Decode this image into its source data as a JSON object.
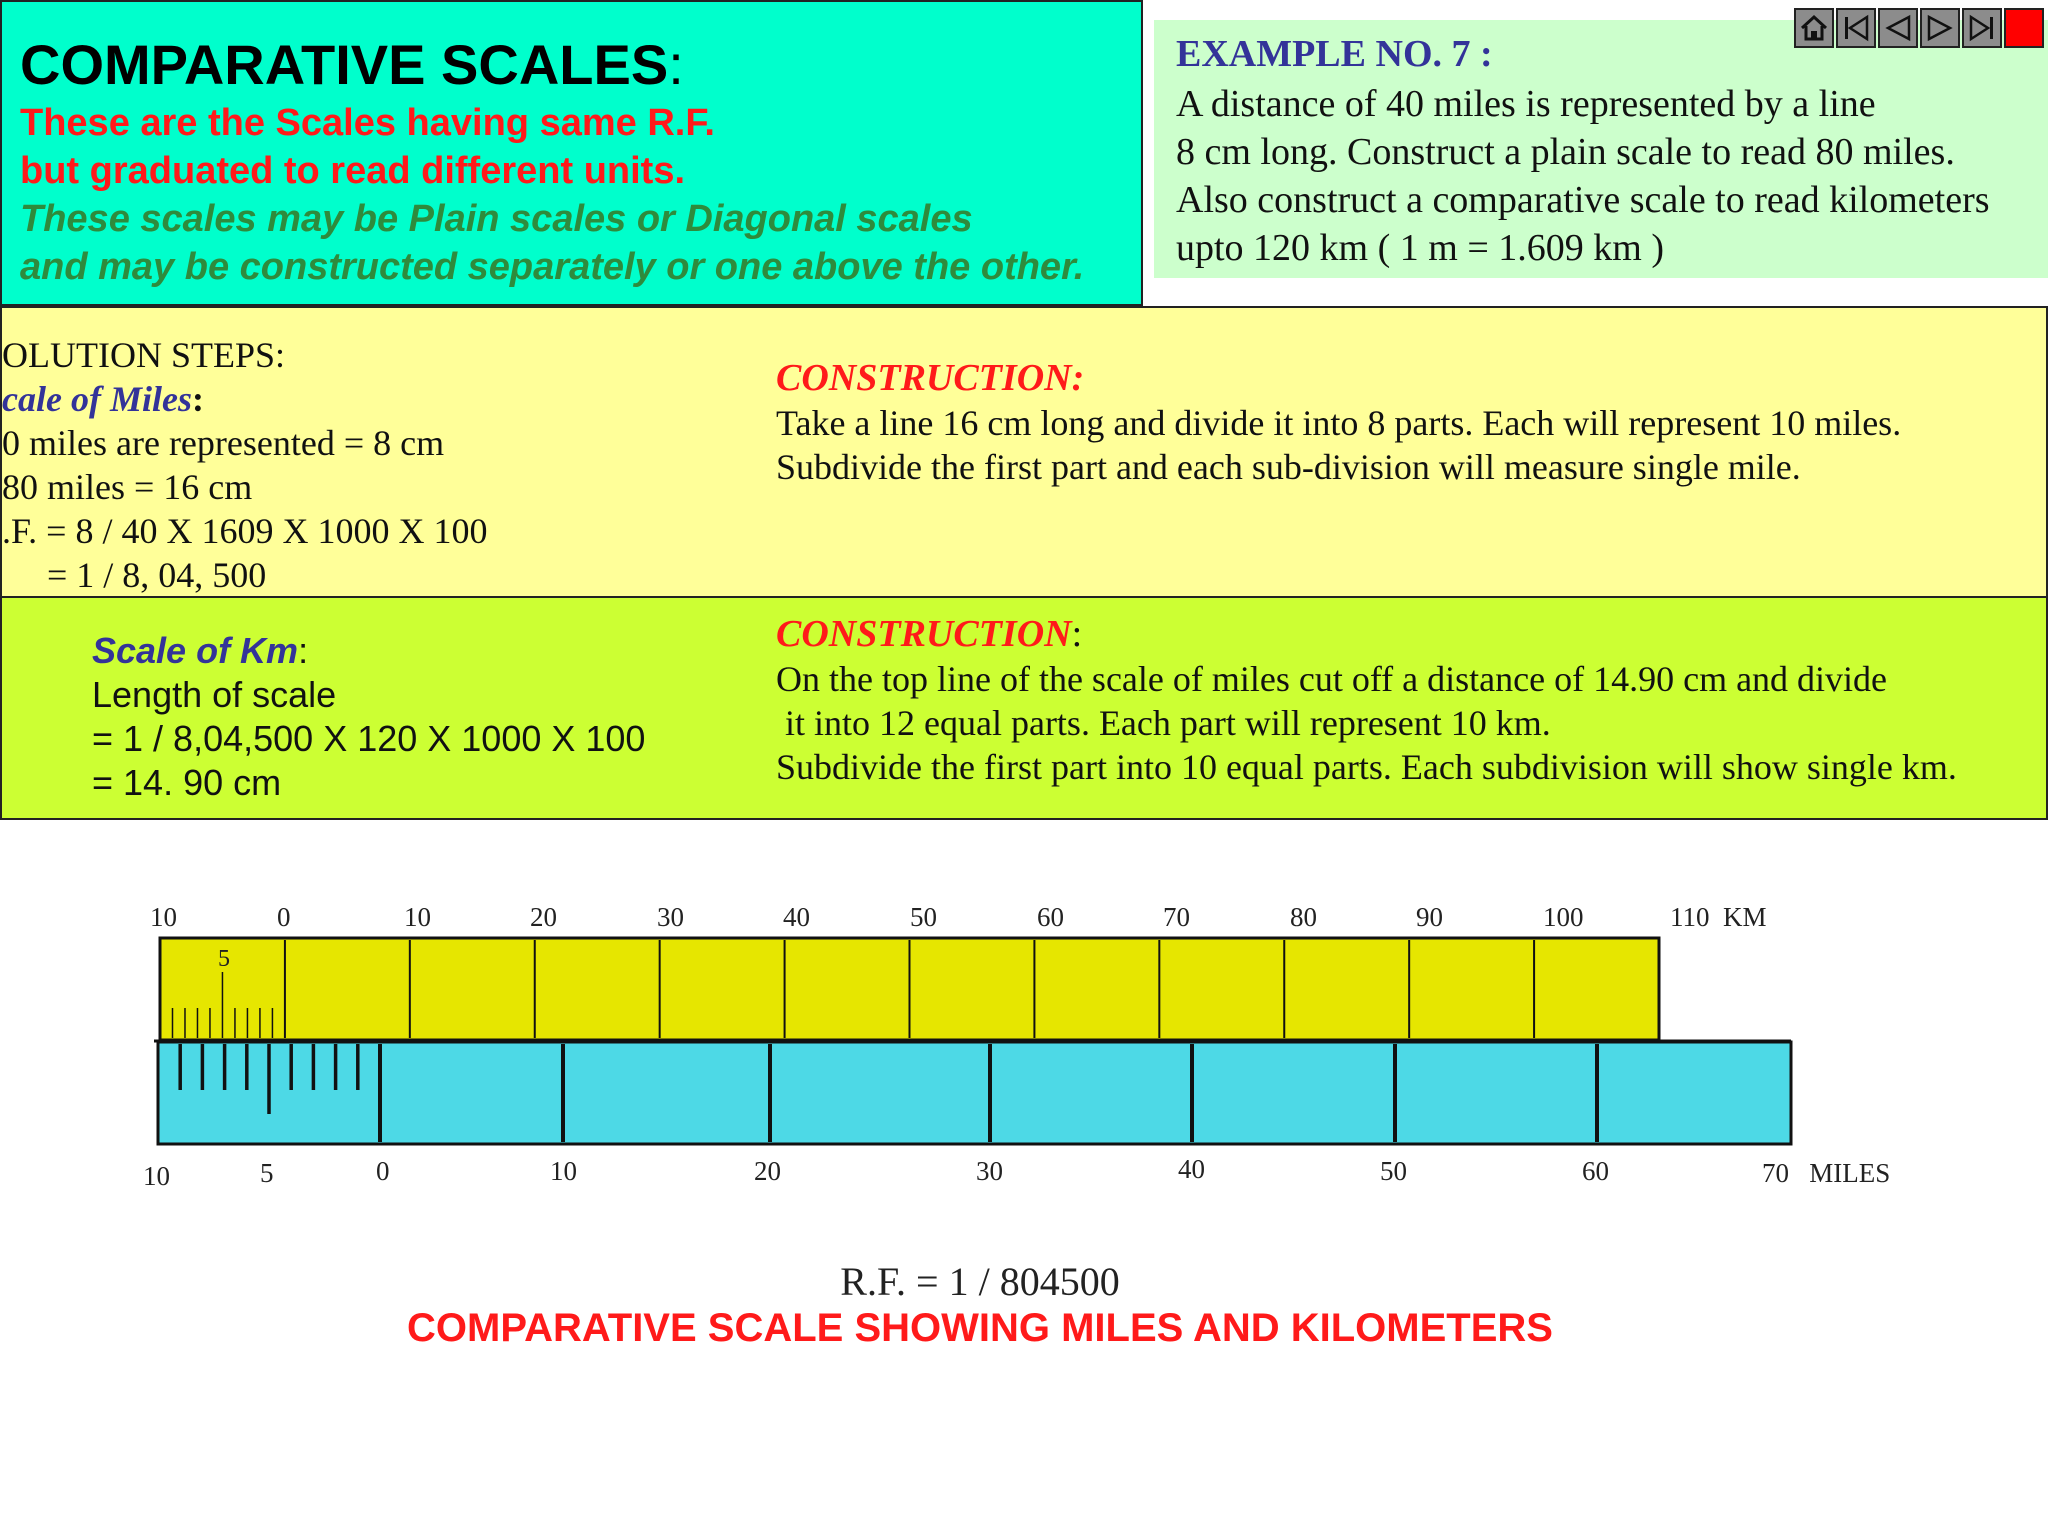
{
  "intro": {
    "title": "COMPARATIVE SCALES",
    "title_colon": ":",
    "red_lines": [
      "These are the Scales having same R.F.",
      "but graduated to read different units."
    ],
    "green_lines": [
      "These scales may be Plain scales or Diagonal scales",
      "and may be constructed separately or one above the other."
    ]
  },
  "example": {
    "heading": "EXAMPLE NO. 7 :",
    "lines": [
      "A distance of 40 miles is represented by a line",
      "8 cm long. Construct a plain scale to read 80 miles.",
      "Also construct a comparative scale to read kilometers",
      "upto  120 km ( 1 m = 1.609 km )"
    ]
  },
  "nav": {
    "buttons": [
      "home-icon",
      "first-slide-icon",
      "previous-slide-icon",
      "next-slide-icon",
      "last-slide-icon",
      "stop-icon"
    ]
  },
  "solution": {
    "steps_heading": "OLUTION STEPS:",
    "miles_heading": "cale of Miles",
    "miles_colon": ":",
    "lines": [
      "0 miles are represented = 8 cm",
      "80 miles = 16 cm",
      ".F. = 8 / 40 X 1609 X 1000 X 100",
      "     = 1 / 8, 04, 500"
    ],
    "construction_heading": "CONSTRUCTION:",
    "construction_lines": [
      "Take a line 16 cm long and divide it into 8 parts. Each will represent 10 miles.",
      "Subdivide the first part and each sub-division will measure single mile."
    ]
  },
  "km_section": {
    "heading": "Scale of  Km",
    "heading_colon": ":",
    "lines": [
      "Length of scale",
      "= 1 / 8,04,500  X 120 X 1000 X 100",
      "= 14. 90 cm"
    ],
    "construction_heading": "CONSTRUCTION",
    "construction_colon": ":",
    "construction_lines": [
      "On the top line of the scale of miles cut off a distance of 14.90 cm and divide",
      " it into 12 equal parts. Each part will represent 10 km.",
      "Subdivide the first part into 10 equal parts. Each subdivision will show single km."
    ]
  },
  "scale": {
    "km_labels": [
      "10",
      "0",
      "10",
      "20",
      "30",
      "40",
      "50",
      "60",
      "70",
      "80",
      "90",
      "100",
      "110  KM"
    ],
    "km_sub_label": "5",
    "miles_labels": [
      "10",
      "5",
      "0",
      "10",
      "20",
      "30",
      "40",
      "50",
      "60",
      "70   MILES"
    ],
    "colors": {
      "km_bar": "#e6e600",
      "miles_bar": "#4dd9e6",
      "stroke": "#111111"
    }
  },
  "captions": {
    "rf": "R.F. = 1 / 804500",
    "main": "COMPARATIVE SCALE  SHOWING MILES AND KILOMETERS"
  }
}
